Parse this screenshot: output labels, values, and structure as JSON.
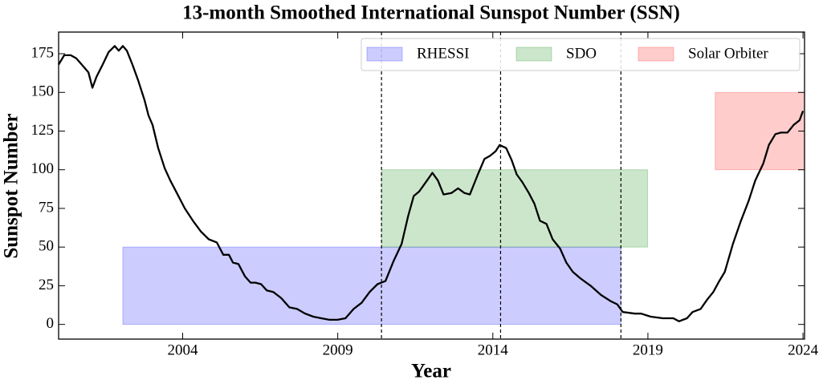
{
  "chart_data": {
    "type": "line",
    "title": "13-month Smoothed International Sunspot Number (SSN)",
    "xlabel": "Year",
    "ylabel": "Sunspot Number",
    "xlim": [
      2000,
      2024.05
    ],
    "ylim": [
      -9.5,
      189
    ],
    "xticks": [
      2004,
      2009,
      2014,
      2019,
      2024
    ],
    "yticks": [
      0,
      25,
      50,
      75,
      100,
      125,
      150,
      175
    ],
    "color": "#000000",
    "legend": "upper right",
    "x": [
      2000.0,
      2000.18,
      2000.39,
      2000.57,
      2000.83,
      2000.96,
      2001.09,
      2001.22,
      2001.42,
      2001.61,
      2001.81,
      2001.94,
      2002.07,
      2002.2,
      2002.38,
      2002.56,
      2002.77,
      2002.9,
      2003.03,
      2003.21,
      2003.42,
      2003.6,
      2003.81,
      2004.07,
      2004.33,
      2004.59,
      2004.84,
      2005.1,
      2005.31,
      2005.49,
      2005.62,
      2005.8,
      2006.01,
      2006.19,
      2006.35,
      2006.53,
      2006.71,
      2006.92,
      2007.18,
      2007.44,
      2007.69,
      2007.95,
      2008.21,
      2008.47,
      2008.73,
      2008.99,
      2009.25,
      2009.51,
      2009.77,
      2010.03,
      2010.28,
      2010.54,
      2010.8,
      2011.06,
      2011.27,
      2011.45,
      2011.63,
      2011.84,
      2012.05,
      2012.23,
      2012.41,
      2012.67,
      2012.88,
      2013.08,
      2013.26,
      2013.52,
      2013.73,
      2013.91,
      2014.09,
      2014.22,
      2014.43,
      2014.61,
      2014.77,
      2014.95,
      2015.16,
      2015.34,
      2015.52,
      2015.73,
      2015.93,
      2016.17,
      2016.37,
      2016.58,
      2016.81,
      2017.15,
      2017.49,
      2017.8,
      2018.01,
      2018.19,
      2018.58,
      2018.78,
      2019.09,
      2019.48,
      2019.82,
      2020.0,
      2020.26,
      2020.44,
      2020.7,
      2020.91,
      2021.11,
      2021.3,
      2021.48,
      2021.74,
      2022.0,
      2022.25,
      2022.46,
      2022.72,
      2022.9,
      2023.11,
      2023.29,
      2023.5,
      2023.7,
      2023.89,
      2024.0
    ],
    "values": [
      168,
      174,
      174,
      172,
      166,
      163,
      153,
      160,
      168,
      176,
      180,
      177,
      180,
      177,
      168,
      158,
      145,
      135,
      129,
      114,
      101,
      93,
      85,
      75,
      67,
      60,
      55,
      53,
      45,
      45,
      40,
      39,
      31,
      27,
      27,
      26,
      22,
      21,
      17,
      11,
      10,
      7,
      5,
      4,
      3,
      3,
      4,
      10,
      14,
      21,
      26,
      28,
      41,
      52,
      70,
      83,
      86,
      92,
      98,
      93,
      84,
      85,
      88,
      85,
      84,
      97,
      107,
      109,
      112,
      116,
      114,
      106,
      97,
      92,
      85,
      78,
      67,
      65,
      55,
      49,
      40,
      34,
      30,
      25,
      19,
      15,
      13,
      8,
      7,
      7,
      5,
      4,
      4,
      2,
      4,
      8,
      10,
      16,
      21,
      28,
      34,
      52,
      67,
      80,
      93,
      104,
      116,
      123,
      124,
      124,
      129,
      132,
      138
    ],
    "spans": [
      {
        "name": "RHESSI",
        "color": "#0000ff",
        "alpha": 0.2,
        "x": [
          2002.07,
          2018.13
        ],
        "y": [
          0,
          50
        ]
      },
      {
        "name": "SDO",
        "color": "#008000",
        "alpha": 0.2,
        "x": [
          2010.41,
          2018.99
        ],
        "y": [
          50,
          100
        ]
      },
      {
        "name": "Solar Orbiter",
        "color": "#ff0000",
        "alpha": 0.2,
        "x": [
          2021.17,
          2024.05
        ],
        "y": [
          100,
          150
        ]
      }
    ],
    "vlines": [
      2010.41,
      2014.25,
      2018.13
    ]
  }
}
